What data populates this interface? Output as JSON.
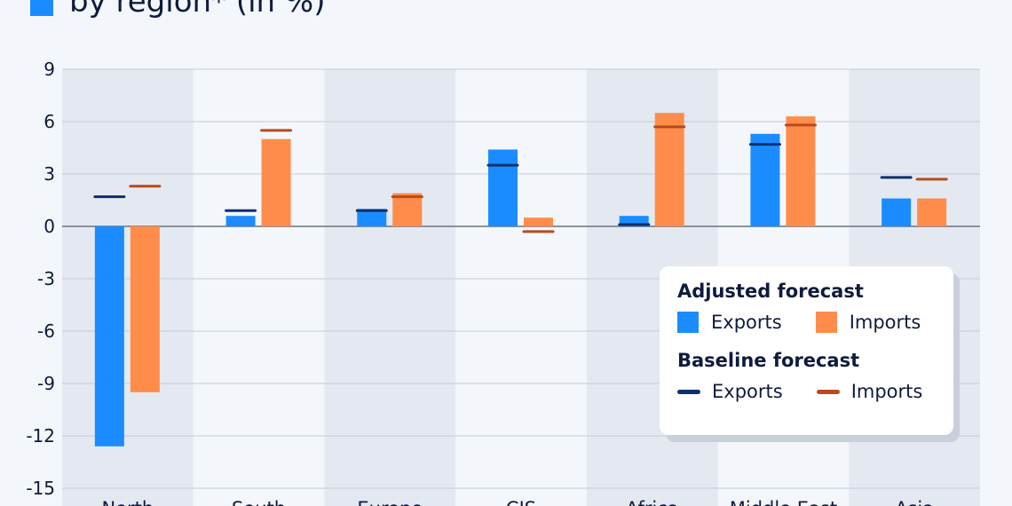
{
  "header": {
    "title_fragment": "by region*  (in %)"
  },
  "colors": {
    "exports": "#1a8cff",
    "imports": "#ff8c4a",
    "baseline_exports": "#0e2f6e",
    "baseline_imports": "#b84a1c",
    "band": "#e4e9f1",
    "grid": "#c5ccd6",
    "zero_line": "#6b7280",
    "text": "#0f1b3d"
  },
  "legend": {
    "adjusted_heading": "Adjusted forecast",
    "baseline_heading": "Baseline forecast",
    "exports_label": "Exports",
    "imports_label": "Imports"
  },
  "chart_data": {
    "type": "bar",
    "title": "",
    "ylim": [
      -15,
      9
    ],
    "yticks": [
      9,
      6,
      3,
      0,
      -3,
      -6,
      -9,
      -12,
      -15
    ],
    "categories": [
      "North",
      "South",
      "Europe",
      "CIS",
      "Africa",
      "Middle East",
      "Asia"
    ],
    "series": [
      {
        "name": "Exports",
        "group": "Adjusted forecast",
        "values": [
          -12.6,
          0.6,
          1.0,
          4.4,
          0.6,
          5.3,
          1.6
        ]
      },
      {
        "name": "Imports",
        "group": "Adjusted forecast",
        "values": [
          -9.5,
          5.0,
          1.9,
          0.5,
          6.5,
          6.3,
          1.6
        ]
      },
      {
        "name": "Exports",
        "group": "Baseline forecast",
        "values": [
          1.7,
          0.9,
          0.9,
          3.5,
          0.1,
          4.7,
          2.8
        ]
      },
      {
        "name": "Imports",
        "group": "Baseline forecast",
        "values": [
          2.3,
          5.5,
          1.7,
          -0.3,
          5.7,
          5.8,
          2.7
        ]
      }
    ],
    "grid": true,
    "legend_position": "bottom-right"
  }
}
